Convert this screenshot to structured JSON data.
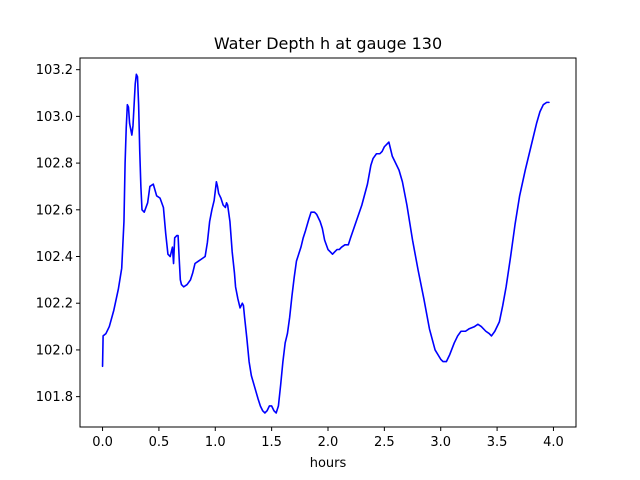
{
  "chart_data": {
    "type": "line",
    "title": "Water Depth h at gauge 130",
    "xlabel": "hours",
    "ylabel": "",
    "xlim": [
      -0.2,
      4.2
    ],
    "ylim": [
      101.67,
      103.25
    ],
    "x_ticks": [
      0.0,
      0.5,
      1.0,
      1.5,
      2.0,
      2.5,
      3.0,
      3.5,
      4.0
    ],
    "x_tick_labels": [
      "0.0",
      "0.5",
      "1.0",
      "1.5",
      "2.0",
      "2.5",
      "3.0",
      "3.5",
      "4.0"
    ],
    "y_ticks": [
      101.8,
      102.0,
      102.2,
      102.4,
      102.6,
      102.8,
      103.0,
      103.2
    ],
    "y_tick_labels": [
      "101.8",
      "102.0",
      "102.2",
      "102.4",
      "102.6",
      "102.8",
      "103.0",
      "103.2"
    ],
    "grid": false,
    "legend": "none",
    "series": [
      {
        "color": "#0000ff",
        "points": [
          [
            0.0,
            101.93
          ],
          [
            0.005,
            102.06
          ],
          [
            0.03,
            102.07
          ],
          [
            0.06,
            102.1
          ],
          [
            0.1,
            102.17
          ],
          [
            0.14,
            102.26
          ],
          [
            0.17,
            102.35
          ],
          [
            0.19,
            102.55
          ],
          [
            0.2,
            102.8
          ],
          [
            0.21,
            102.95
          ],
          [
            0.22,
            103.05
          ],
          [
            0.23,
            103.04
          ],
          [
            0.24,
            102.97
          ],
          [
            0.26,
            102.92
          ],
          [
            0.27,
            102.96
          ],
          [
            0.28,
            103.05
          ],
          [
            0.29,
            103.14
          ],
          [
            0.3,
            103.18
          ],
          [
            0.31,
            103.17
          ],
          [
            0.32,
            103.05
          ],
          [
            0.33,
            102.85
          ],
          [
            0.34,
            102.7
          ],
          [
            0.35,
            102.6
          ],
          [
            0.37,
            102.59
          ],
          [
            0.4,
            102.63
          ],
          [
            0.42,
            102.7
          ],
          [
            0.45,
            102.71
          ],
          [
            0.48,
            102.66
          ],
          [
            0.51,
            102.65
          ],
          [
            0.54,
            102.61
          ],
          [
            0.56,
            102.5
          ],
          [
            0.58,
            102.41
          ],
          [
            0.6,
            102.4
          ],
          [
            0.62,
            102.44
          ],
          [
            0.63,
            102.37
          ],
          [
            0.64,
            102.48
          ],
          [
            0.66,
            102.49
          ],
          [
            0.67,
            102.49
          ],
          [
            0.68,
            102.39
          ],
          [
            0.69,
            102.3
          ],
          [
            0.7,
            102.28
          ],
          [
            0.72,
            102.27
          ],
          [
            0.75,
            102.28
          ],
          [
            0.78,
            102.3
          ],
          [
            0.8,
            102.33
          ],
          [
            0.82,
            102.37
          ],
          [
            0.85,
            102.38
          ],
          [
            0.88,
            102.39
          ],
          [
            0.91,
            102.4
          ],
          [
            0.93,
            102.46
          ],
          [
            0.95,
            102.55
          ],
          [
            0.97,
            102.6
          ],
          [
            0.99,
            102.64
          ],
          [
            1.0,
            102.68
          ],
          [
            1.01,
            102.72
          ],
          [
            1.02,
            102.7
          ],
          [
            1.03,
            102.67
          ],
          [
            1.05,
            102.65
          ],
          [
            1.07,
            102.62
          ],
          [
            1.09,
            102.61
          ],
          [
            1.1,
            102.63
          ],
          [
            1.11,
            102.62
          ],
          [
            1.13,
            102.55
          ],
          [
            1.15,
            102.42
          ],
          [
            1.17,
            102.33
          ],
          [
            1.18,
            102.27
          ],
          [
            1.2,
            102.22
          ],
          [
            1.22,
            102.18
          ],
          [
            1.24,
            102.2
          ],
          [
            1.25,
            102.19
          ],
          [
            1.26,
            102.14
          ],
          [
            1.28,
            102.05
          ],
          [
            1.3,
            101.95
          ],
          [
            1.32,
            101.89
          ],
          [
            1.35,
            101.84
          ],
          [
            1.38,
            101.79
          ],
          [
            1.4,
            101.76
          ],
          [
            1.42,
            101.74
          ],
          [
            1.44,
            101.73
          ],
          [
            1.46,
            101.74
          ],
          [
            1.48,
            101.76
          ],
          [
            1.5,
            101.76
          ],
          [
            1.52,
            101.74
          ],
          [
            1.54,
            101.73
          ],
          [
            1.56,
            101.76
          ],
          [
            1.58,
            101.85
          ],
          [
            1.6,
            101.95
          ],
          [
            1.62,
            102.03
          ],
          [
            1.64,
            102.07
          ],
          [
            1.66,
            102.14
          ],
          [
            1.68,
            102.23
          ],
          [
            1.7,
            102.31
          ],
          [
            1.72,
            102.38
          ],
          [
            1.74,
            102.41
          ],
          [
            1.76,
            102.44
          ],
          [
            1.78,
            102.48
          ],
          [
            1.8,
            102.51
          ],
          [
            1.83,
            102.56
          ],
          [
            1.85,
            102.59
          ],
          [
            1.88,
            102.59
          ],
          [
            1.9,
            102.58
          ],
          [
            1.93,
            102.55
          ],
          [
            1.95,
            102.52
          ],
          [
            1.97,
            102.47
          ],
          [
            2.0,
            102.43
          ],
          [
            2.02,
            102.42
          ],
          [
            2.04,
            102.41
          ],
          [
            2.06,
            102.42
          ],
          [
            2.08,
            102.43
          ],
          [
            2.1,
            102.43
          ],
          [
            2.12,
            102.44
          ],
          [
            2.15,
            102.45
          ],
          [
            2.18,
            102.45
          ],
          [
            2.2,
            102.48
          ],
          [
            2.25,
            102.55
          ],
          [
            2.3,
            102.62
          ],
          [
            2.35,
            102.71
          ],
          [
            2.38,
            102.79
          ],
          [
            2.4,
            102.82
          ],
          [
            2.43,
            102.84
          ],
          [
            2.46,
            102.84
          ],
          [
            2.48,
            102.85
          ],
          [
            2.5,
            102.87
          ],
          [
            2.52,
            102.88
          ],
          [
            2.54,
            102.89
          ],
          [
            2.55,
            102.87
          ],
          [
            2.57,
            102.83
          ],
          [
            2.6,
            102.8
          ],
          [
            2.63,
            102.77
          ],
          [
            2.66,
            102.72
          ],
          [
            2.7,
            102.62
          ],
          [
            2.75,
            102.47
          ],
          [
            2.8,
            102.34
          ],
          [
            2.85,
            102.22
          ],
          [
            2.9,
            102.09
          ],
          [
            2.95,
            102.0
          ],
          [
            3.0,
            101.96
          ],
          [
            3.02,
            101.95
          ],
          [
            3.05,
            101.95
          ],
          [
            3.08,
            101.98
          ],
          [
            3.12,
            102.03
          ],
          [
            3.15,
            102.06
          ],
          [
            3.18,
            102.08
          ],
          [
            3.22,
            102.08
          ],
          [
            3.25,
            102.09
          ],
          [
            3.3,
            102.1
          ],
          [
            3.33,
            102.11
          ],
          [
            3.36,
            102.1
          ],
          [
            3.4,
            102.08
          ],
          [
            3.43,
            102.07
          ],
          [
            3.45,
            102.06
          ],
          [
            3.48,
            102.08
          ],
          [
            3.52,
            102.12
          ],
          [
            3.55,
            102.19
          ],
          [
            3.58,
            102.27
          ],
          [
            3.62,
            102.4
          ],
          [
            3.66,
            102.54
          ],
          [
            3.7,
            102.66
          ],
          [
            3.75,
            102.77
          ],
          [
            3.8,
            102.87
          ],
          [
            3.85,
            102.97
          ],
          [
            3.88,
            103.02
          ],
          [
            3.91,
            103.05
          ],
          [
            3.94,
            103.06
          ],
          [
            3.96,
            103.06
          ]
        ]
      }
    ]
  }
}
